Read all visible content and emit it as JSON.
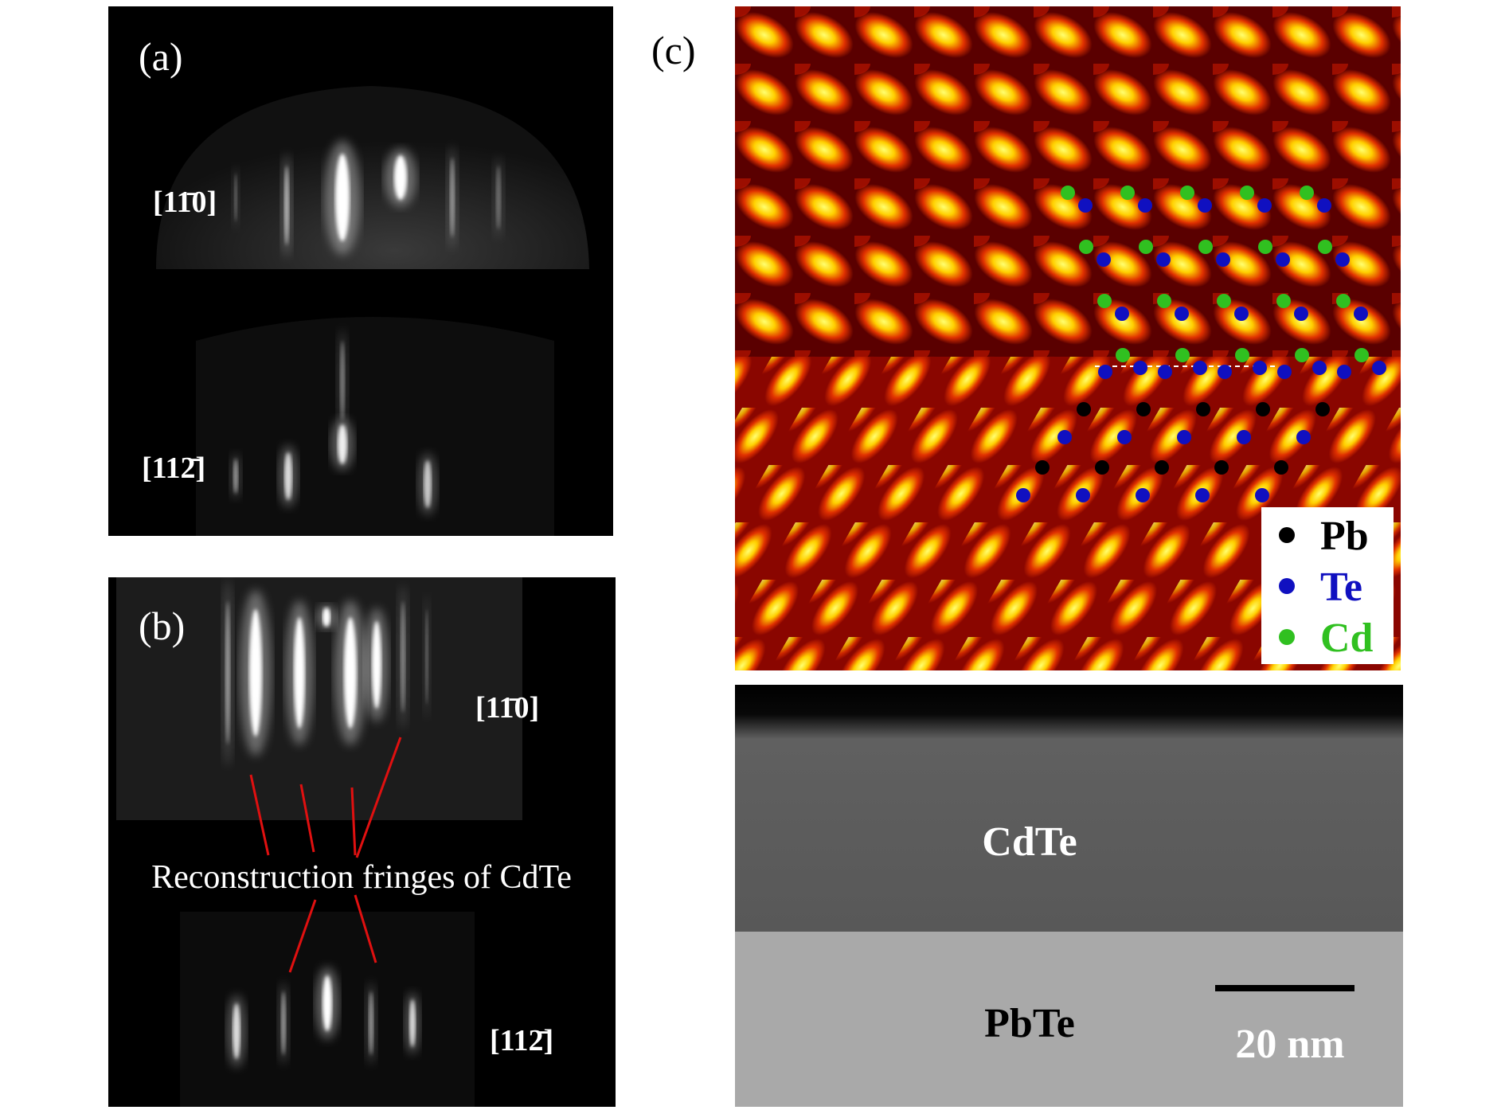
{
  "panels": {
    "a": {
      "label": "(a)",
      "directions": [
        "[11̄0]",
        "[112̄]"
      ]
    },
    "b": {
      "label": "(b)",
      "directions": [
        "[11̄0]",
        "[112̄]"
      ],
      "annotation": "Reconstruction fringes of CdTe"
    },
    "c": {
      "label": "(c)",
      "legend": [
        "Pb",
        "Te",
        "Cd"
      ],
      "layers": [
        "CdTe",
        "PbTe"
      ],
      "scale_bar": "20 nm"
    }
  }
}
